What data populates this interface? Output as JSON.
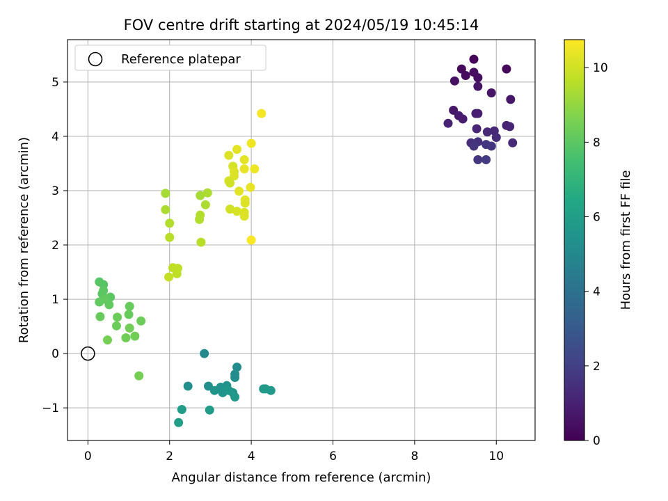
{
  "chart_data": {
    "type": "scatter",
    "title": "FOV centre drift starting at 2024/05/19 10:45:14",
    "xlabel": "Angular distance from reference (arcmin)",
    "ylabel": "Rotation from reference (arcmin)",
    "xlim": [
      -0.5,
      10.95
    ],
    "ylim": [
      -1.6,
      5.78
    ],
    "xticks": [
      0,
      2,
      4,
      6,
      8,
      10
    ],
    "yticks": [
      -1,
      0,
      1,
      2,
      3,
      4,
      5
    ],
    "grid": true,
    "legend": {
      "placement": "top-left",
      "entries": [
        "Reference platepar"
      ]
    },
    "reference_point": {
      "x": 0,
      "y": 0
    },
    "colorbar": {
      "label": "Hours from first FF file",
      "colormap": "viridis",
      "range": [
        0,
        10.75
      ],
      "ticks": [
        0,
        2,
        4,
        6,
        8,
        10
      ]
    },
    "points": [
      {
        "x": 9.45,
        "y": 5.42,
        "c": 0.1
      },
      {
        "x": 10.25,
        "y": 5.24,
        "c": 0.2
      },
      {
        "x": 9.15,
        "y": 5.24,
        "c": 0.2
      },
      {
        "x": 9.25,
        "y": 5.12,
        "c": 0.3
      },
      {
        "x": 9.45,
        "y": 5.18,
        "c": 0.4
      },
      {
        "x": 9.55,
        "y": 5.08,
        "c": 0.4
      },
      {
        "x": 8.98,
        "y": 5.02,
        "c": 0.5
      },
      {
        "x": 9.55,
        "y": 4.92,
        "c": 0.6
      },
      {
        "x": 9.88,
        "y": 4.8,
        "c": 0.6
      },
      {
        "x": 10.35,
        "y": 4.68,
        "c": 0.7
      },
      {
        "x": 8.95,
        "y": 4.48,
        "c": 0.7
      },
      {
        "x": 9.08,
        "y": 4.38,
        "c": 0.8
      },
      {
        "x": 9.18,
        "y": 4.32,
        "c": 0.8
      },
      {
        "x": 9.5,
        "y": 4.42,
        "c": 0.9
      },
      {
        "x": 9.55,
        "y": 4.42,
        "c": 0.9
      },
      {
        "x": 8.82,
        "y": 4.24,
        "c": 1.0
      },
      {
        "x": 10.25,
        "y": 4.2,
        "c": 1.0
      },
      {
        "x": 10.33,
        "y": 4.18,
        "c": 1.1
      },
      {
        "x": 9.52,
        "y": 4.14,
        "c": 1.1
      },
      {
        "x": 9.78,
        "y": 4.08,
        "c": 1.2
      },
      {
        "x": 9.95,
        "y": 4.1,
        "c": 1.2
      },
      {
        "x": 10.0,
        "y": 3.98,
        "c": 1.3
      },
      {
        "x": 10.4,
        "y": 3.88,
        "c": 1.3
      },
      {
        "x": 9.38,
        "y": 3.88,
        "c": 1.4
      },
      {
        "x": 9.55,
        "y": 3.9,
        "c": 1.5
      },
      {
        "x": 9.45,
        "y": 3.82,
        "c": 1.6
      },
      {
        "x": 9.75,
        "y": 3.85,
        "c": 1.6
      },
      {
        "x": 9.88,
        "y": 3.82,
        "c": 1.7
      },
      {
        "x": 9.55,
        "y": 3.57,
        "c": 1.7
      },
      {
        "x": 9.75,
        "y": 3.57,
        "c": 1.8
      },
      {
        "x": 2.85,
        "y": 0.0,
        "c": 5.0
      },
      {
        "x": 3.65,
        "y": -0.25,
        "c": 5.1
      },
      {
        "x": 3.6,
        "y": -0.38,
        "c": 5.2
      },
      {
        "x": 3.6,
        "y": -0.44,
        "c": 5.2
      },
      {
        "x": 2.45,
        "y": -0.6,
        "c": 5.3
      },
      {
        "x": 2.95,
        "y": -0.6,
        "c": 5.3
      },
      {
        "x": 3.4,
        "y": -0.59,
        "c": 5.4
      },
      {
        "x": 3.25,
        "y": -0.62,
        "c": 5.4
      },
      {
        "x": 3.1,
        "y": -0.68,
        "c": 5.5
      },
      {
        "x": 3.3,
        "y": -0.72,
        "c": 5.5
      },
      {
        "x": 3.45,
        "y": -0.68,
        "c": 5.6
      },
      {
        "x": 3.55,
        "y": -0.72,
        "c": 5.6
      },
      {
        "x": 3.6,
        "y": -0.8,
        "c": 5.7
      },
      {
        "x": 4.3,
        "y": -0.65,
        "c": 5.7
      },
      {
        "x": 4.35,
        "y": -0.65,
        "c": 5.8
      },
      {
        "x": 4.48,
        "y": -0.68,
        "c": 5.8
      },
      {
        "x": 2.3,
        "y": -1.03,
        "c": 5.9
      },
      {
        "x": 2.98,
        "y": -1.04,
        "c": 5.9
      },
      {
        "x": 2.22,
        "y": -1.27,
        "c": 6.0
      },
      {
        "x": 0.28,
        "y": 1.32,
        "c": 7.9
      },
      {
        "x": 0.38,
        "y": 1.27,
        "c": 7.9
      },
      {
        "x": 0.38,
        "y": 1.16,
        "c": 8.0
      },
      {
        "x": 0.35,
        "y": 1.1,
        "c": 8.0
      },
      {
        "x": 0.55,
        "y": 1.04,
        "c": 8.0
      },
      {
        "x": 0.42,
        "y": 1.0,
        "c": 8.1
      },
      {
        "x": 0.28,
        "y": 0.95,
        "c": 8.1
      },
      {
        "x": 0.52,
        "y": 0.9,
        "c": 8.1
      },
      {
        "x": 1.02,
        "y": 0.87,
        "c": 8.2
      },
      {
        "x": 1.0,
        "y": 0.72,
        "c": 8.2
      },
      {
        "x": 0.3,
        "y": 0.68,
        "c": 8.2
      },
      {
        "x": 0.72,
        "y": 0.67,
        "c": 8.3
      },
      {
        "x": 1.3,
        "y": 0.6,
        "c": 8.3
      },
      {
        "x": 0.7,
        "y": 0.51,
        "c": 8.3
      },
      {
        "x": 1.02,
        "y": 0.47,
        "c": 8.4
      },
      {
        "x": 1.15,
        "y": 0.32,
        "c": 8.4
      },
      {
        "x": 0.93,
        "y": 0.29,
        "c": 8.4
      },
      {
        "x": 0.48,
        "y": 0.25,
        "c": 8.5
      },
      {
        "x": 1.25,
        "y": -0.41,
        "c": 8.5
      },
      {
        "x": 1.9,
        "y": 2.95,
        "c": 9.3
      },
      {
        "x": 2.75,
        "y": 2.91,
        "c": 9.3
      },
      {
        "x": 2.93,
        "y": 2.96,
        "c": 9.4
      },
      {
        "x": 2.88,
        "y": 2.74,
        "c": 9.4
      },
      {
        "x": 1.9,
        "y": 2.65,
        "c": 9.4
      },
      {
        "x": 2.75,
        "y": 2.55,
        "c": 9.5
      },
      {
        "x": 2.73,
        "y": 2.47,
        "c": 9.5
      },
      {
        "x": 2.0,
        "y": 2.4,
        "c": 9.5
      },
      {
        "x": 2.0,
        "y": 2.14,
        "c": 9.6
      },
      {
        "x": 2.77,
        "y": 2.05,
        "c": 9.6
      },
      {
        "x": 2.08,
        "y": 1.58,
        "c": 9.7
      },
      {
        "x": 2.2,
        "y": 1.57,
        "c": 9.7
      },
      {
        "x": 2.18,
        "y": 1.47,
        "c": 9.7
      },
      {
        "x": 1.98,
        "y": 1.41,
        "c": 9.8
      },
      {
        "x": 4.25,
        "y": 4.42,
        "c": 10.6
      },
      {
        "x": 4.0,
        "y": 3.87,
        "c": 10.5
      },
      {
        "x": 3.65,
        "y": 3.76,
        "c": 10.3
      },
      {
        "x": 3.45,
        "y": 3.65,
        "c": 10.2
      },
      {
        "x": 3.83,
        "y": 3.57,
        "c": 10.3
      },
      {
        "x": 3.55,
        "y": 3.45,
        "c": 10.1
      },
      {
        "x": 3.58,
        "y": 3.35,
        "c": 10.2
      },
      {
        "x": 3.83,
        "y": 3.4,
        "c": 10.4
      },
      {
        "x": 4.08,
        "y": 3.4,
        "c": 10.5
      },
      {
        "x": 3.58,
        "y": 3.27,
        "c": 10.2
      },
      {
        "x": 3.45,
        "y": 3.18,
        "c": 10.1
      },
      {
        "x": 3.48,
        "y": 3.14,
        "c": 10.0
      },
      {
        "x": 3.7,
        "y": 2.99,
        "c": 10.3
      },
      {
        "x": 3.98,
        "y": 3.06,
        "c": 10.4
      },
      {
        "x": 3.85,
        "y": 2.83,
        "c": 10.3
      },
      {
        "x": 3.85,
        "y": 2.77,
        "c": 10.2
      },
      {
        "x": 3.48,
        "y": 2.66,
        "c": 10.0
      },
      {
        "x": 3.65,
        "y": 2.62,
        "c": 10.1
      },
      {
        "x": 3.83,
        "y": 2.6,
        "c": 10.2
      },
      {
        "x": 3.83,
        "y": 2.53,
        "c": 10.2
      },
      {
        "x": 4.0,
        "y": 2.09,
        "c": 10.7
      }
    ]
  }
}
